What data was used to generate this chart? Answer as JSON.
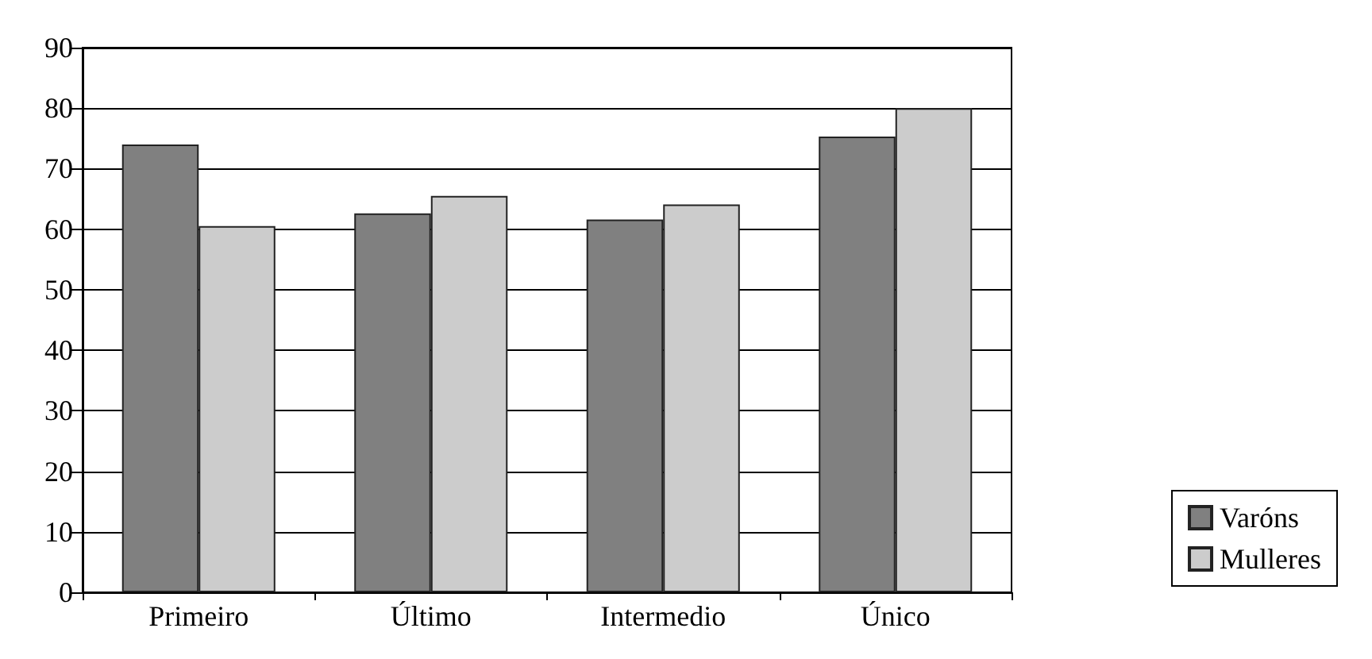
{
  "chart_data": {
    "type": "bar",
    "categories": [
      "Primeiro",
      "Último",
      "Intermedio",
      "Único"
    ],
    "series": [
      {
        "name": "Varóns",
        "color": "#808080",
        "values": [
          74,
          62.6,
          61.6,
          75.3
        ]
      },
      {
        "name": "Mulleres",
        "color": "#cccccc",
        "values": [
          60.5,
          65.5,
          64.1,
          80
        ]
      }
    ],
    "ylim": [
      0,
      90
    ],
    "yticks": [
      0,
      10,
      20,
      30,
      40,
      50,
      60,
      70,
      80,
      90
    ],
    "grid": "y",
    "legend": "bottom right"
  }
}
